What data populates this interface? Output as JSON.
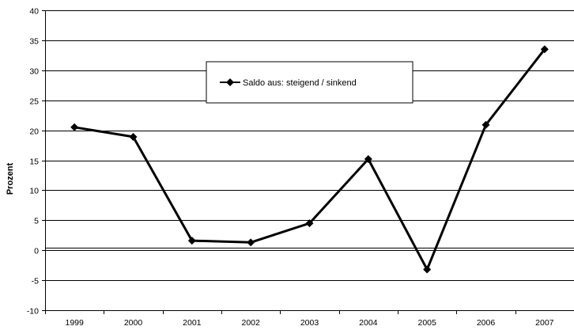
{
  "chart_data": {
    "type": "line",
    "title": "",
    "xlabel": "",
    "ylabel": "Prozent",
    "ylim": [
      -10,
      40
    ],
    "yticks": [
      -10,
      -5,
      0,
      5,
      10,
      15,
      20,
      25,
      30,
      35,
      40
    ],
    "categories": [
      "1999",
      "2000",
      "2001",
      "2002",
      "2003",
      "2004",
      "2005",
      "2006",
      "2007"
    ],
    "grid": true,
    "legend_position": "top-center",
    "series": [
      {
        "name": "Saldo aus: steigend / sinkend",
        "values": [
          20.5,
          18.9,
          1.6,
          1.3,
          4.5,
          15.2,
          -3.2,
          20.9,
          33.5
        ],
        "color": "#000000",
        "marker": "diamond"
      }
    ]
  }
}
